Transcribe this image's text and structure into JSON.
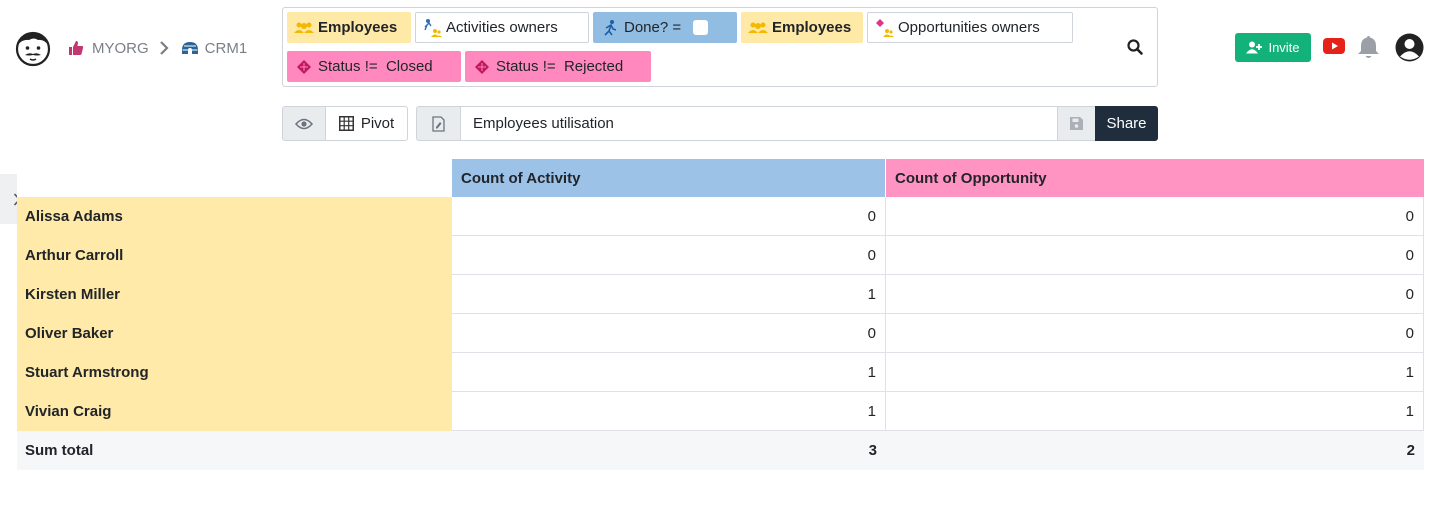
{
  "breadcrumb": {
    "org": "MYORG",
    "app": "CRM1"
  },
  "filters": [
    {
      "label": "Employees",
      "style": "yellow",
      "icon": "employees-icon"
    },
    {
      "label": "Activities owners",
      "style": "white",
      "icon": "activities-owners-icon"
    },
    {
      "label": "Done? =",
      "style": "blue",
      "icon": "activity-icon",
      "checked": false
    },
    {
      "label": "Employees",
      "style": "yellow",
      "icon": "employees-icon"
    },
    {
      "label": "Opportunities owners",
      "style": "white",
      "icon": "opportunities-owners-icon"
    },
    {
      "label": "Status !=  Closed",
      "style": "pink",
      "icon": "opportunity-icon"
    },
    {
      "label": "Status !=  Rejected",
      "style": "pink",
      "icon": "opportunity-icon"
    }
  ],
  "header": {
    "invite_label": "Invite"
  },
  "toolbar": {
    "pivot_label": "Pivot",
    "report_name": "Employees utilisation",
    "share_label": "Share"
  },
  "pivot": {
    "columns": [
      "Count of Activity",
      "Count of Opportunity"
    ],
    "rows": [
      {
        "name": "Alissa Adams",
        "activity": "0",
        "opportunity": "0"
      },
      {
        "name": "Arthur Carroll",
        "activity": "0",
        "opportunity": "0"
      },
      {
        "name": "Kirsten Miller",
        "activity": "1",
        "opportunity": "0"
      },
      {
        "name": "Oliver Baker",
        "activity": "0",
        "opportunity": "0"
      },
      {
        "name": "Stuart Armstrong",
        "activity": "1",
        "opportunity": "1"
      },
      {
        "name": "Vivian Craig",
        "activity": "1",
        "opportunity": "1"
      }
    ],
    "total": {
      "label": "Sum total",
      "activity": "3",
      "opportunity": "2"
    }
  },
  "colors": {
    "activity": "#9cc2e8",
    "opportunity": "#ff94c3",
    "employee": "#ffeaa9",
    "accent": "#12b27a",
    "dark": "#1f2d3d"
  }
}
